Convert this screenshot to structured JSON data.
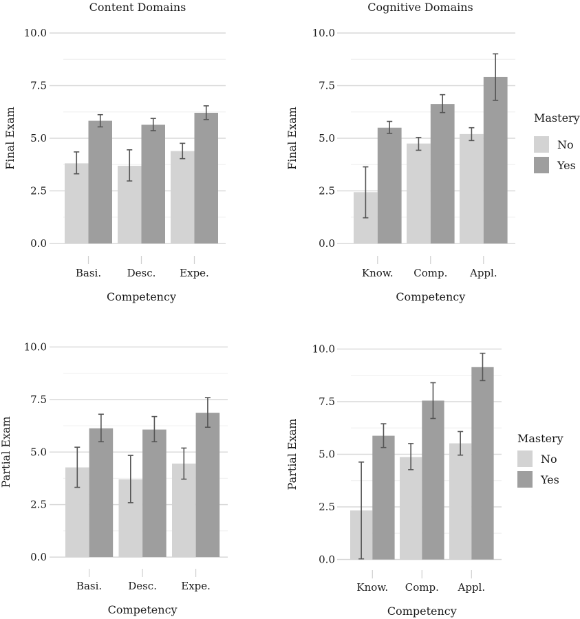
{
  "colors": {
    "No": "#d3d3d3",
    "Yes": "#9e9e9e"
  },
  "chart_data": [
    {
      "type": "bar",
      "id": "content-final",
      "title": "Content Domains",
      "xlabel": "Competency",
      "ylabel": "Final Exam",
      "ylim": [
        0,
        10
      ],
      "yticks": [
        "0.0",
        "2.5",
        "5.0",
        "7.5",
        "10.0"
      ],
      "grid": true,
      "legend": null,
      "categories": [
        "Basi.",
        "Desc.",
        "Expe."
      ],
      "series": [
        {
          "name": "No",
          "values": [
            3.81,
            3.69,
            4.39
          ],
          "err_low": [
            3.31,
            2.97,
            4.03
          ],
          "err_high": [
            4.35,
            4.45,
            4.76
          ]
        },
        {
          "name": "Yes",
          "values": [
            5.83,
            5.64,
            6.21
          ],
          "err_low": [
            5.54,
            5.36,
            5.89
          ],
          "err_high": [
            6.12,
            5.94,
            6.54
          ]
        }
      ]
    },
    {
      "type": "bar",
      "id": "cognitive-final",
      "title": "Cognitive Domains",
      "xlabel": "Competency",
      "ylabel": "Final Exam",
      "ylim": [
        0,
        10
      ],
      "yticks": [
        "0.0",
        "2.5",
        "5.0",
        "7.5",
        "10.0"
      ],
      "grid": true,
      "legend": {
        "title": "Mastery",
        "entries": [
          "No",
          "Yes"
        ],
        "placement": "right"
      },
      "categories": [
        "Know.",
        "Comp.",
        "Appl."
      ],
      "series": [
        {
          "name": "No",
          "values": [
            2.44,
            4.75,
            5.2
          ],
          "err_low": [
            1.22,
            4.43,
            4.89
          ],
          "err_high": [
            3.64,
            5.04,
            5.5
          ]
        },
        {
          "name": "Yes",
          "values": [
            5.5,
            6.63,
            7.91
          ],
          "err_low": [
            5.23,
            6.22,
            6.8
          ],
          "err_high": [
            5.8,
            7.07,
            9.01
          ]
        }
      ]
    },
    {
      "type": "bar",
      "id": "content-partial",
      "title": "",
      "xlabel": "Competency",
      "ylabel": "Partial Exam",
      "ylim": [
        0,
        10
      ],
      "yticks": [
        "0.0",
        "2.5",
        "5.0",
        "7.5",
        "10.0"
      ],
      "grid": true,
      "legend": null,
      "categories": [
        "Basi.",
        "Desc.",
        "Expe."
      ],
      "series": [
        {
          "name": "No",
          "values": [
            4.27,
            3.7,
            4.45
          ],
          "err_low": [
            3.32,
            2.59,
            3.71
          ],
          "err_high": [
            5.23,
            4.84,
            5.19
          ]
        },
        {
          "name": "Yes",
          "values": [
            6.13,
            6.07,
            6.87
          ],
          "err_low": [
            5.49,
            5.49,
            6.18
          ],
          "err_high": [
            6.8,
            6.69,
            7.59
          ]
        }
      ]
    },
    {
      "type": "bar",
      "id": "cognitive-partial",
      "title": "",
      "xlabel": "Competency",
      "ylabel": "Partial Exam",
      "ylim": [
        0,
        10
      ],
      "yticks": [
        "0.0",
        "2.5",
        "5.0",
        "7.5",
        "10.0"
      ],
      "grid": true,
      "legend": {
        "title": "Mastery",
        "entries": [
          "No",
          "Yes"
        ],
        "placement": "right"
      },
      "categories": [
        "Know.",
        "Comp.",
        "Appl."
      ],
      "series": [
        {
          "name": "No",
          "values": [
            2.33,
            4.87,
            5.52
          ],
          "err_low": [
            0.03,
            4.27,
            4.96
          ],
          "err_high": [
            4.63,
            5.51,
            6.08
          ]
        },
        {
          "name": "Yes",
          "values": [
            5.88,
            7.55,
            9.14
          ],
          "err_low": [
            5.32,
            6.7,
            8.5
          ],
          "err_high": [
            6.45,
            8.4,
            9.8
          ]
        }
      ]
    }
  ]
}
